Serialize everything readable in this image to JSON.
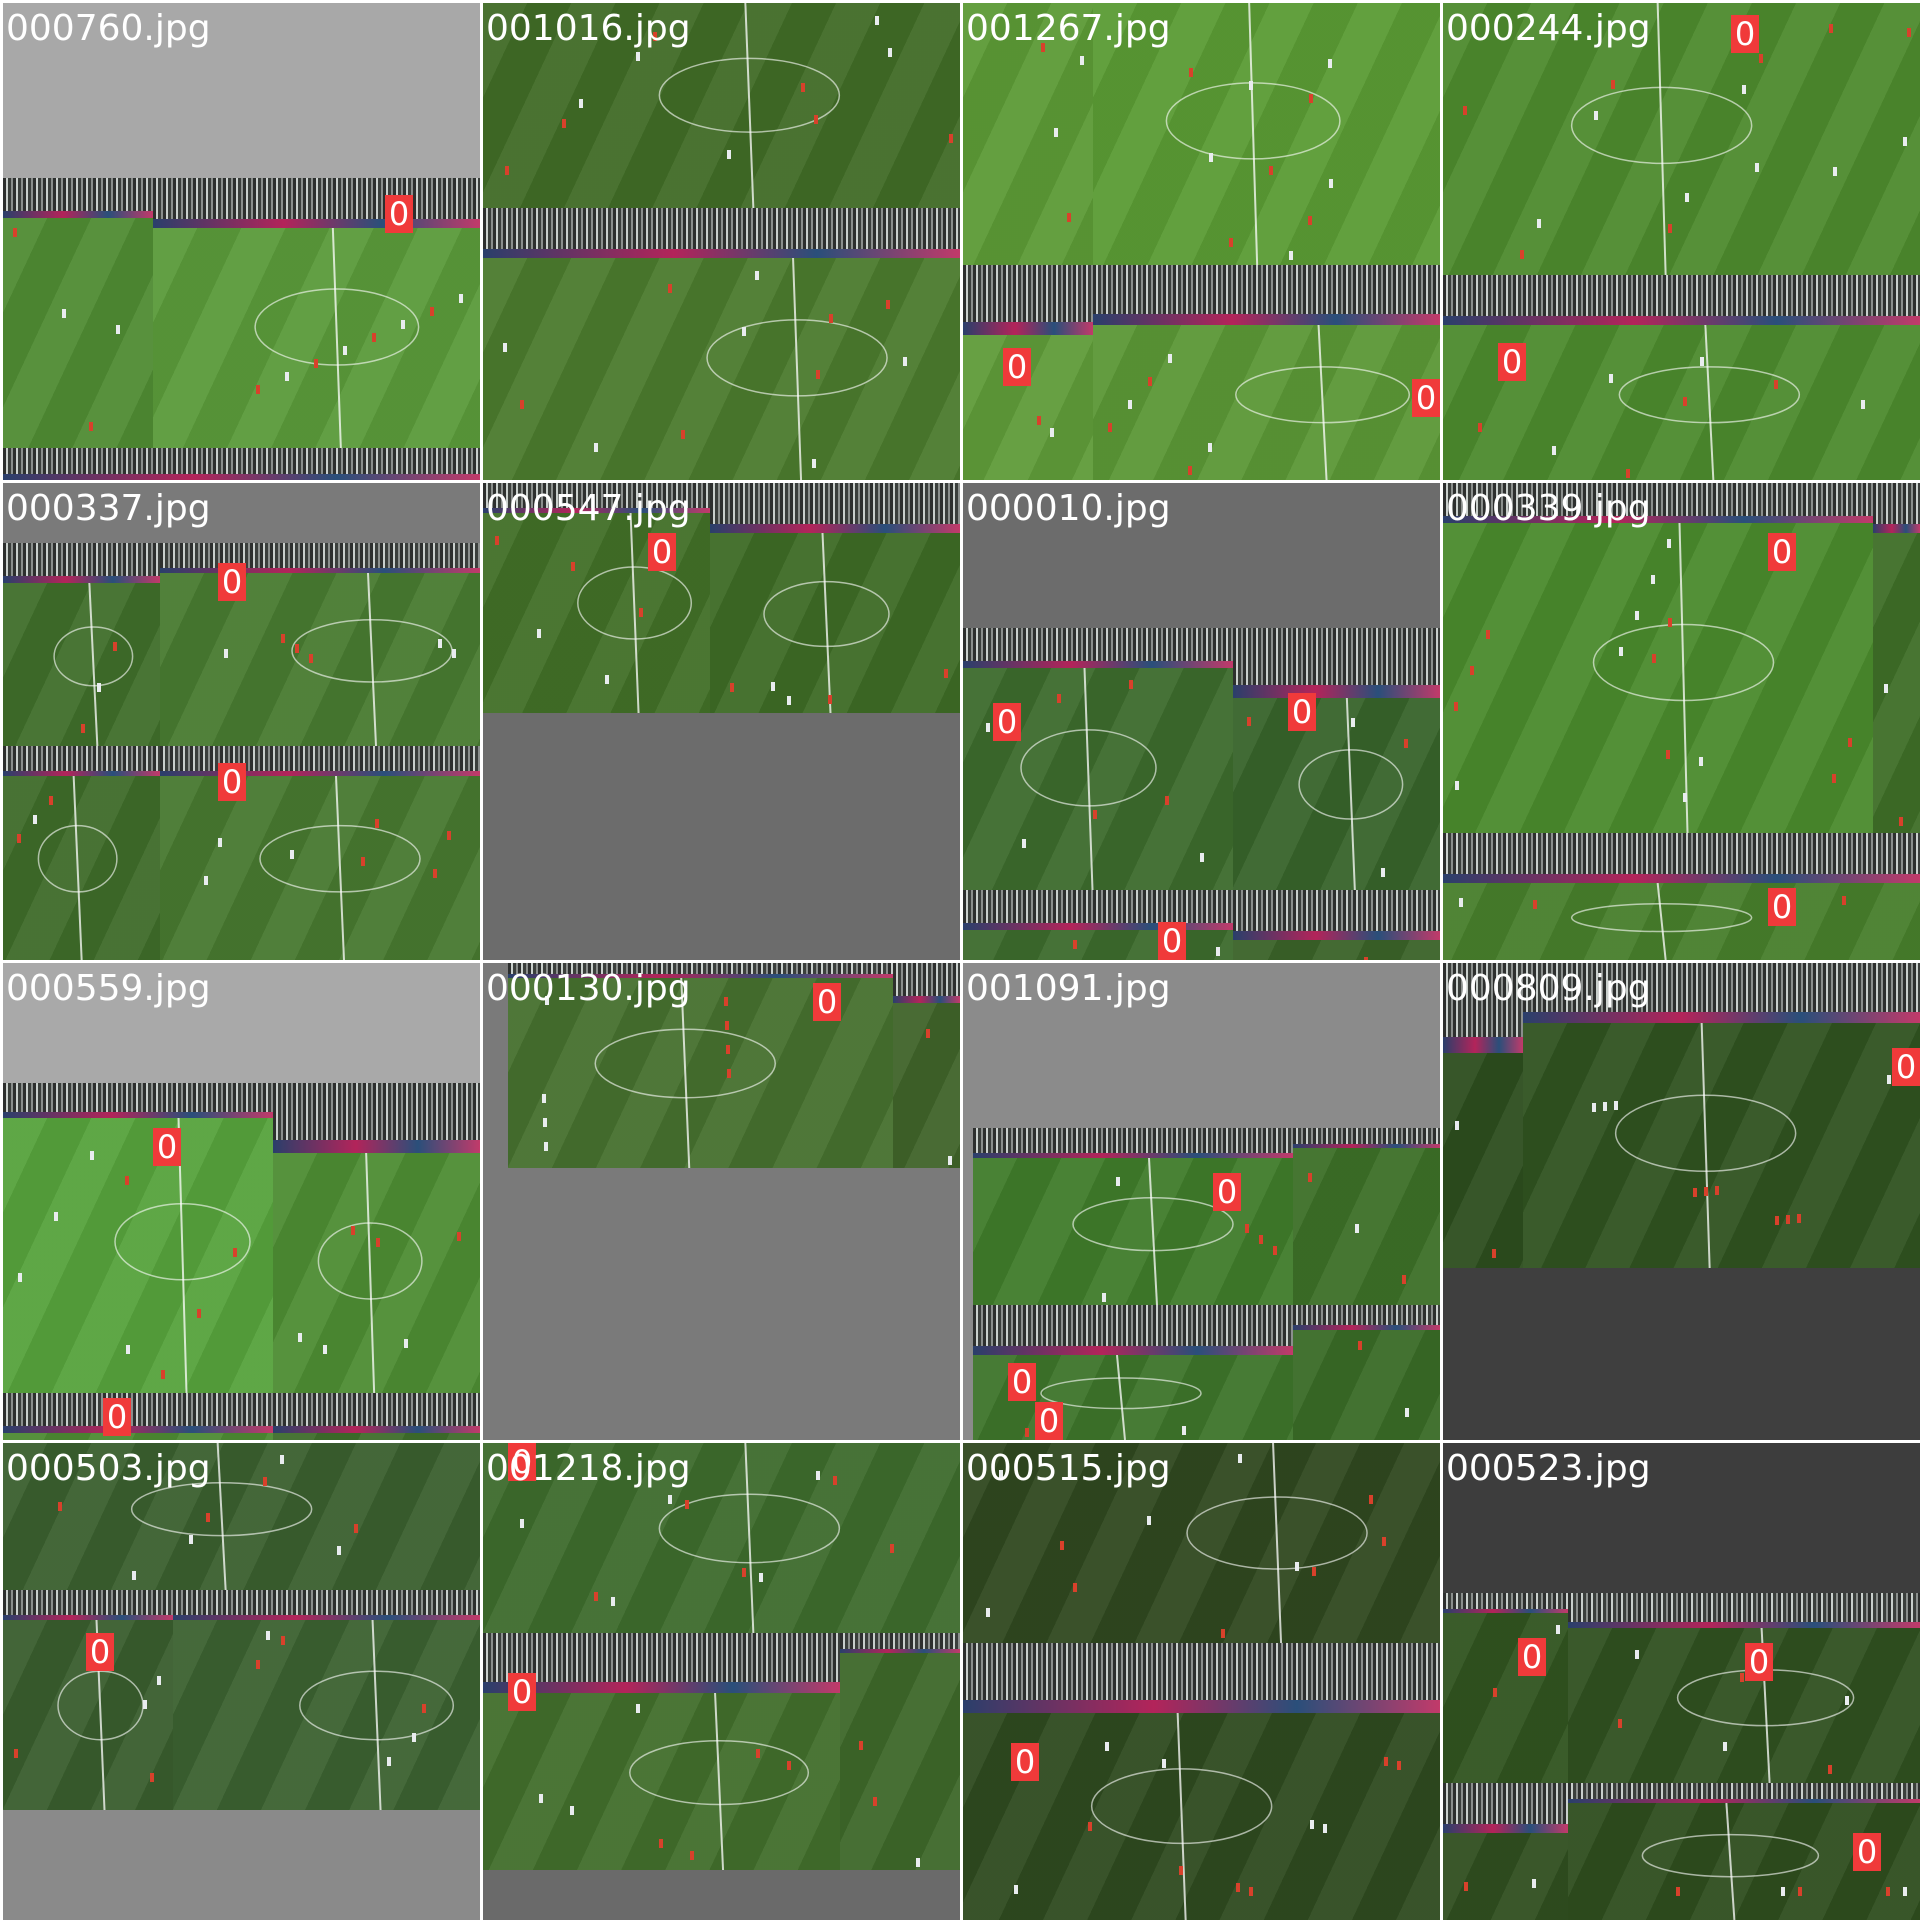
{
  "mosaic": {
    "tiles": [
      {
        "filename": "000760.jpg",
        "boxes": [
          {
            "label": "0"
          }
        ]
      },
      {
        "filename": "001016.jpg",
        "boxes": []
      },
      {
        "filename": "001267.jpg",
        "boxes": [
          {
            "label": "0"
          },
          {
            "label": "0"
          }
        ]
      },
      {
        "filename": "000244.jpg",
        "boxes": [
          {
            "label": "0"
          },
          {
            "label": "0"
          }
        ]
      },
      {
        "filename": "000337.jpg",
        "boxes": [
          {
            "label": "0"
          },
          {
            "label": "0"
          }
        ]
      },
      {
        "filename": "000547.jpg",
        "boxes": [
          {
            "label": "0"
          }
        ]
      },
      {
        "filename": "000010.jpg",
        "boxes": [
          {
            "label": "0"
          },
          {
            "label": "0"
          },
          {
            "label": "0"
          }
        ]
      },
      {
        "filename": "000339.jpg",
        "boxes": [
          {
            "label": "0"
          },
          {
            "label": "0"
          }
        ]
      },
      {
        "filename": "000559.jpg",
        "boxes": [
          {
            "label": "0"
          },
          {
            "label": "0"
          }
        ]
      },
      {
        "filename": "000130.jpg",
        "boxes": [
          {
            "label": "0"
          }
        ]
      },
      {
        "filename": "001091.jpg",
        "boxes": [
          {
            "label": "0"
          },
          {
            "label": "0"
          },
          {
            "label": "0"
          }
        ]
      },
      {
        "filename": "000809.jpg",
        "boxes": [
          {
            "label": "0"
          }
        ]
      },
      {
        "filename": "000503.jpg",
        "boxes": [
          {
            "label": "0"
          }
        ]
      },
      {
        "filename": "001218.jpg",
        "boxes": [
          {
            "label": "0"
          },
          {
            "label": "0"
          }
        ]
      },
      {
        "filename": "000515.jpg",
        "boxes": [
          {
            "label": "0"
          }
        ]
      },
      {
        "filename": "000523.jpg",
        "boxes": [
          {
            "label": "0"
          },
          {
            "label": "0"
          },
          {
            "label": "0"
          }
        ]
      }
    ]
  }
}
